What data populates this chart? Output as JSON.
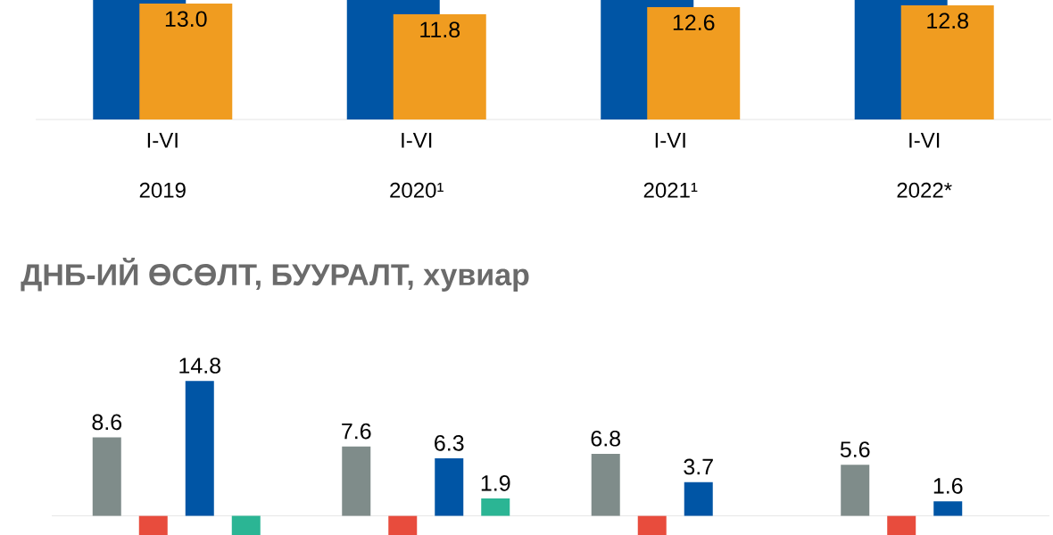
{
  "chart_data": [
    {
      "type": "bar",
      "categories": [
        "I-VI 2019",
        "I-VI 2020¹",
        "I-VI 2021¹",
        "I-VI 2022*"
      ],
      "ylim": [
        0,
        13.4
      ],
      "tick_labels": "x",
      "series": [
        {
          "color": "#0055a5",
          "values": [
            13.4,
            13.4,
            13.4,
            13.4
          ]
        },
        {
          "color": "#f09c20",
          "values": [
            13.0,
            11.8,
            12.6,
            12.8
          ],
          "value_labels": [
            "13.0",
            "11.8",
            "12.6",
            "12.8"
          ]
        }
      ]
    },
    {
      "type": "bar",
      "title": "ДНБ-ИЙ ӨСӨЛТ, БУУРАЛТ, хувиар",
      "categories": [
        null,
        null,
        null,
        null
      ],
      "tick_labels": false,
      "series": [
        {
          "color": "#7f8c8a",
          "values": [
            8.6,
            7.6,
            6.8,
            5.6
          ],
          "value_labels": [
            "8.6",
            "7.6",
            "6.8",
            "5.6"
          ]
        },
        {
          "color": "#e84c3d",
          "values": [
            -2.1,
            -2.1,
            -2.1,
            -2.1
          ]
        },
        {
          "color": "#0055a5",
          "values": [
            14.8,
            6.3,
            3.7,
            1.6
          ],
          "value_labels": [
            "14.8",
            "6.3",
            "3.7",
            "1.6"
          ]
        },
        {
          "color": "#2bb594",
          "values": [
            -2.1,
            1.9,
            null,
            null
          ],
          "value_labels": [
            null,
            "1.9",
            null,
            null
          ]
        }
      ]
    }
  ]
}
